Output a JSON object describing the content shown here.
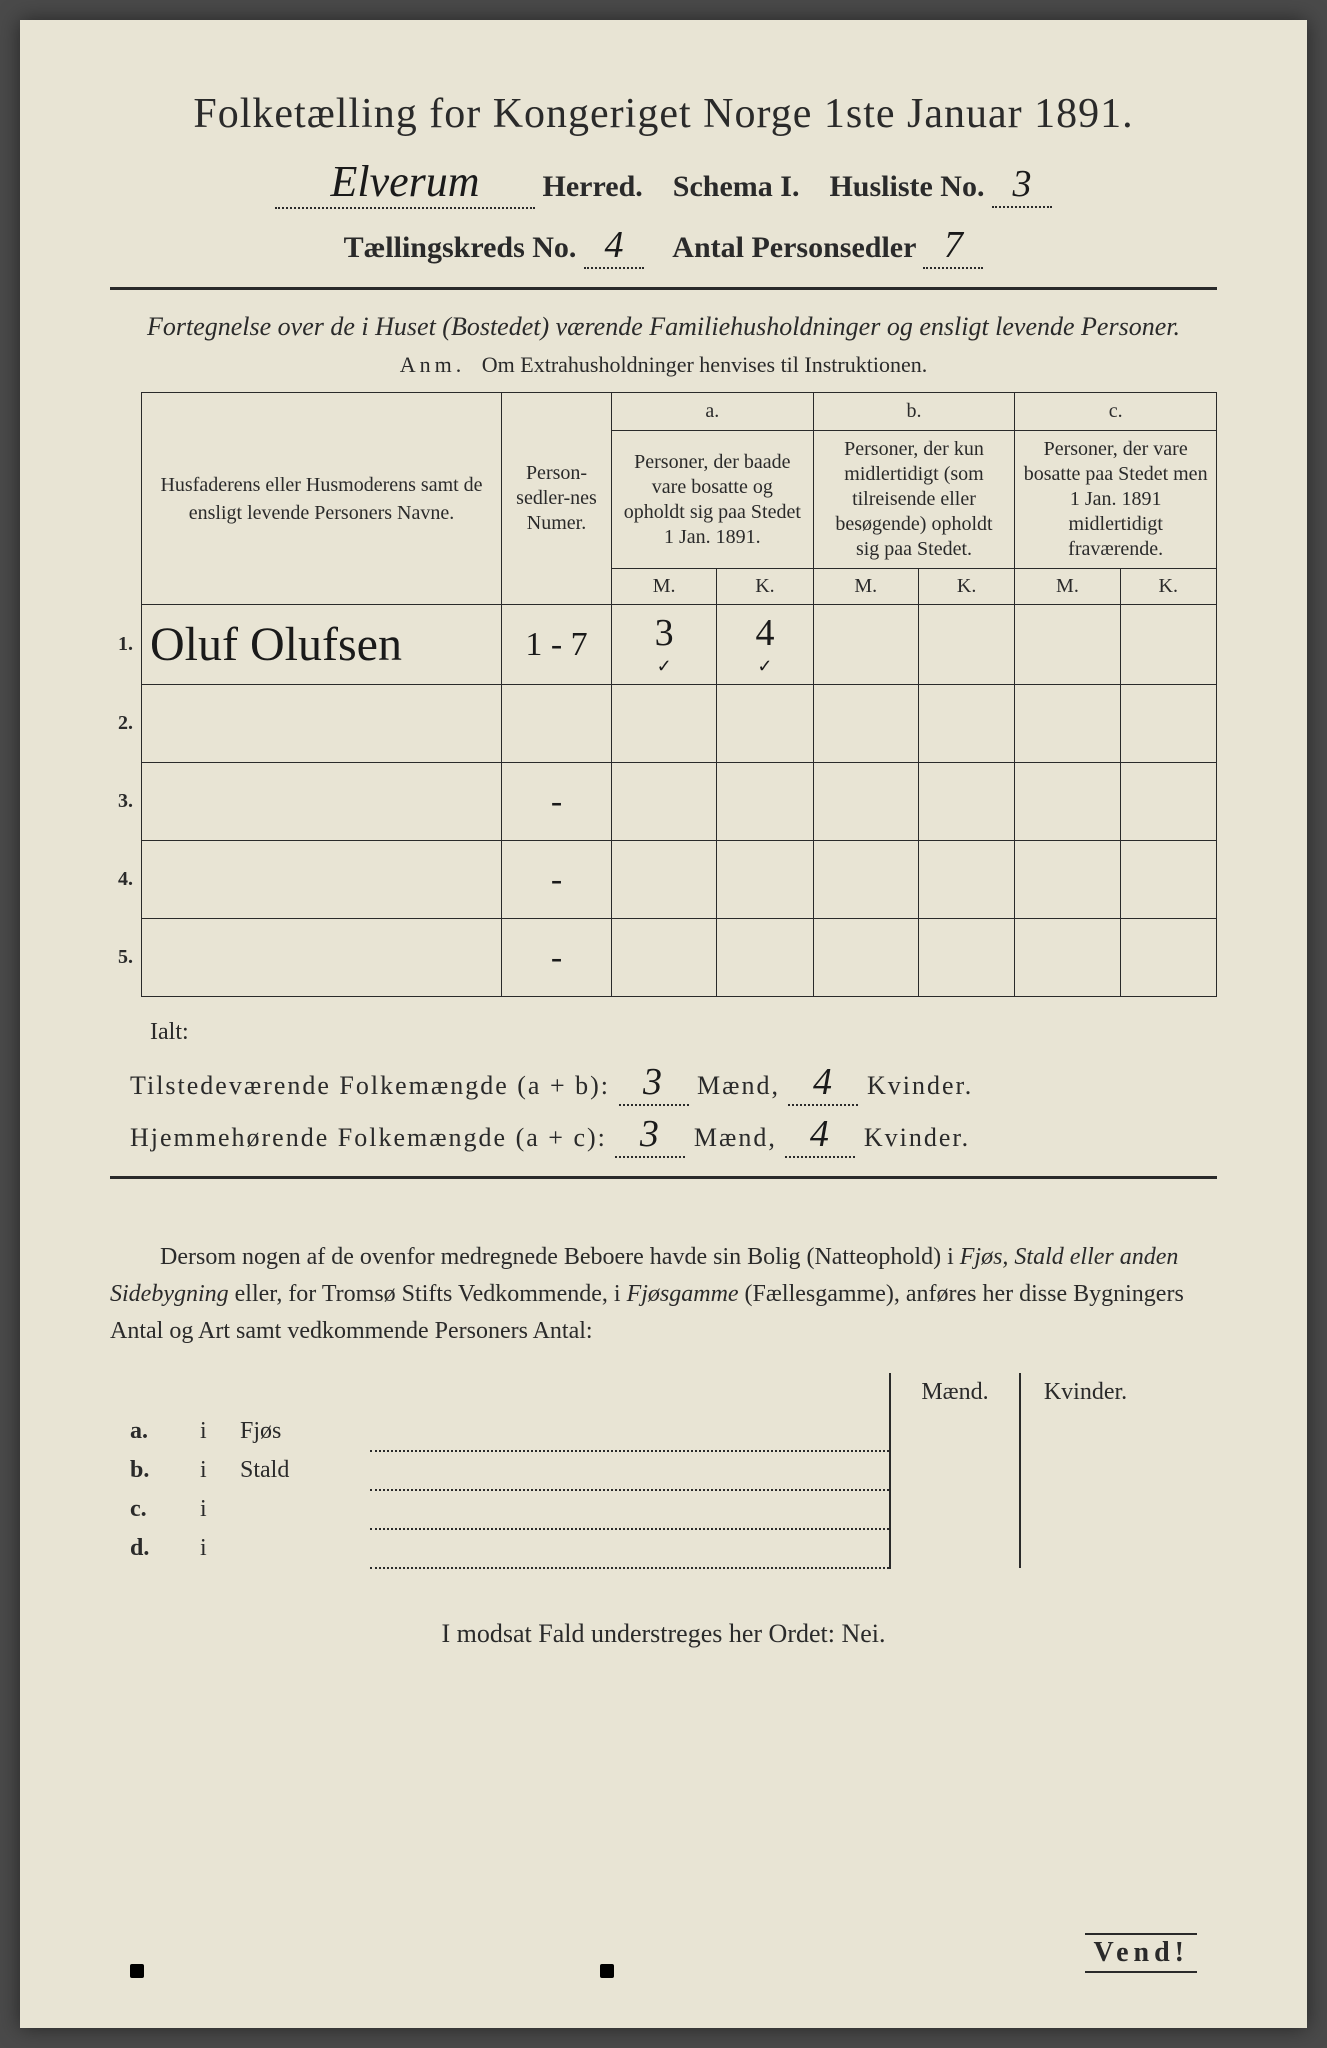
{
  "colors": {
    "page_bg": "#e8e4d4",
    "ink": "#2a2a2a",
    "handwriting": "#1a1a1a",
    "outer_bg": "#4a4a4a"
  },
  "title": "Folketælling for Kongeriget Norge 1ste Januar 1891.",
  "header": {
    "herred_handwritten": "Elverum",
    "herred_label": "Herred.",
    "schema_label": "Schema I.",
    "husliste_label": "Husliste No.",
    "husliste_no": "3",
    "kreds_label": "Tællingskreds No.",
    "kreds_no": "4",
    "antal_label": "Antal Personsedler",
    "antal_no": "7"
  },
  "subtitle": "Fortegnelse over de i Huset (Bostedet) værende Familiehusholdninger og ensligt levende Personer.",
  "anm_label": "Anm.",
  "anm_text": "Om Extrahusholdninger henvises til Instruktionen.",
  "table": {
    "col_names": "Husfaderens eller Husmoderens samt de ensligt levende Personers Navne.",
    "col_sedler": "Person-sedler-nes Numer.",
    "col_a_label": "a.",
    "col_a": "Personer, der baade vare bosatte og opholdt sig paa Stedet 1 Jan. 1891.",
    "col_b_label": "b.",
    "col_b": "Personer, der kun midlertidigt (som tilreisende eller besøgende) opholdt sig paa Stedet.",
    "col_c_label": "c.",
    "col_c": "Personer, der vare bosatte paa Stedet men 1 Jan. 1891 midlertidigt fraværende.",
    "mk_m": "M.",
    "mk_k": "K.",
    "rows": [
      {
        "n": "1.",
        "name": "Oluf Olufsen",
        "sedler": "1 - 7",
        "a_m": "3",
        "a_k": "4",
        "b_m": "",
        "b_k": "",
        "c_m": "",
        "c_k": "",
        "check_a_m": "✓",
        "check_a_k": "✓"
      },
      {
        "n": "2.",
        "name": "",
        "sedler": "",
        "a_m": "",
        "a_k": "",
        "b_m": "",
        "b_k": "",
        "c_m": "",
        "c_k": ""
      },
      {
        "n": "3.",
        "name": "",
        "sedler": "-",
        "a_m": "",
        "a_k": "",
        "b_m": "",
        "b_k": "",
        "c_m": "",
        "c_k": ""
      },
      {
        "n": "4.",
        "name": "",
        "sedler": "-",
        "a_m": "",
        "a_k": "",
        "b_m": "",
        "b_k": "",
        "c_m": "",
        "c_k": ""
      },
      {
        "n": "5.",
        "name": "",
        "sedler": "-",
        "a_m": "",
        "a_k": "",
        "b_m": "",
        "b_k": "",
        "c_m": "",
        "c_k": ""
      }
    ]
  },
  "totals": {
    "ialt": "Ialt:",
    "line1_label": "Tilstedeværende Folkemængde (a + b):",
    "line1_m": "3",
    "line1_k": "4",
    "line2_label": "Hjemmehørende Folkemængde (a + c):",
    "line2_m": "3",
    "line2_k": "4",
    "maend": "Mænd,",
    "kvinder": "Kvinder."
  },
  "paragraph": {
    "p1": "Dersom nogen af de ovenfor medregnede Beboere havde sin Bolig (Natteophold) i ",
    "i1": "Fjøs, Stald eller anden Sidebygning",
    "p2": " eller, for Tromsø Stifts Vedkommende, i ",
    "i2": "Fjøsgamme",
    "p3": " (Fællesgamme), anføres her disse Bygningers Antal og Art samt vedkommende Personers Antal:"
  },
  "outbuildings": {
    "head_m": "Mænd.",
    "head_k": "Kvinder.",
    "rows": [
      {
        "lbl": "a.",
        "i": "i",
        "name": "Fjøs"
      },
      {
        "lbl": "b.",
        "i": "i",
        "name": "Stald"
      },
      {
        "lbl": "c.",
        "i": "i",
        "name": ""
      },
      {
        "lbl": "d.",
        "i": "i",
        "name": ""
      }
    ]
  },
  "nei_line": "I modsat Fald understreges her Ordet: Nei.",
  "vend": "Vend!"
}
